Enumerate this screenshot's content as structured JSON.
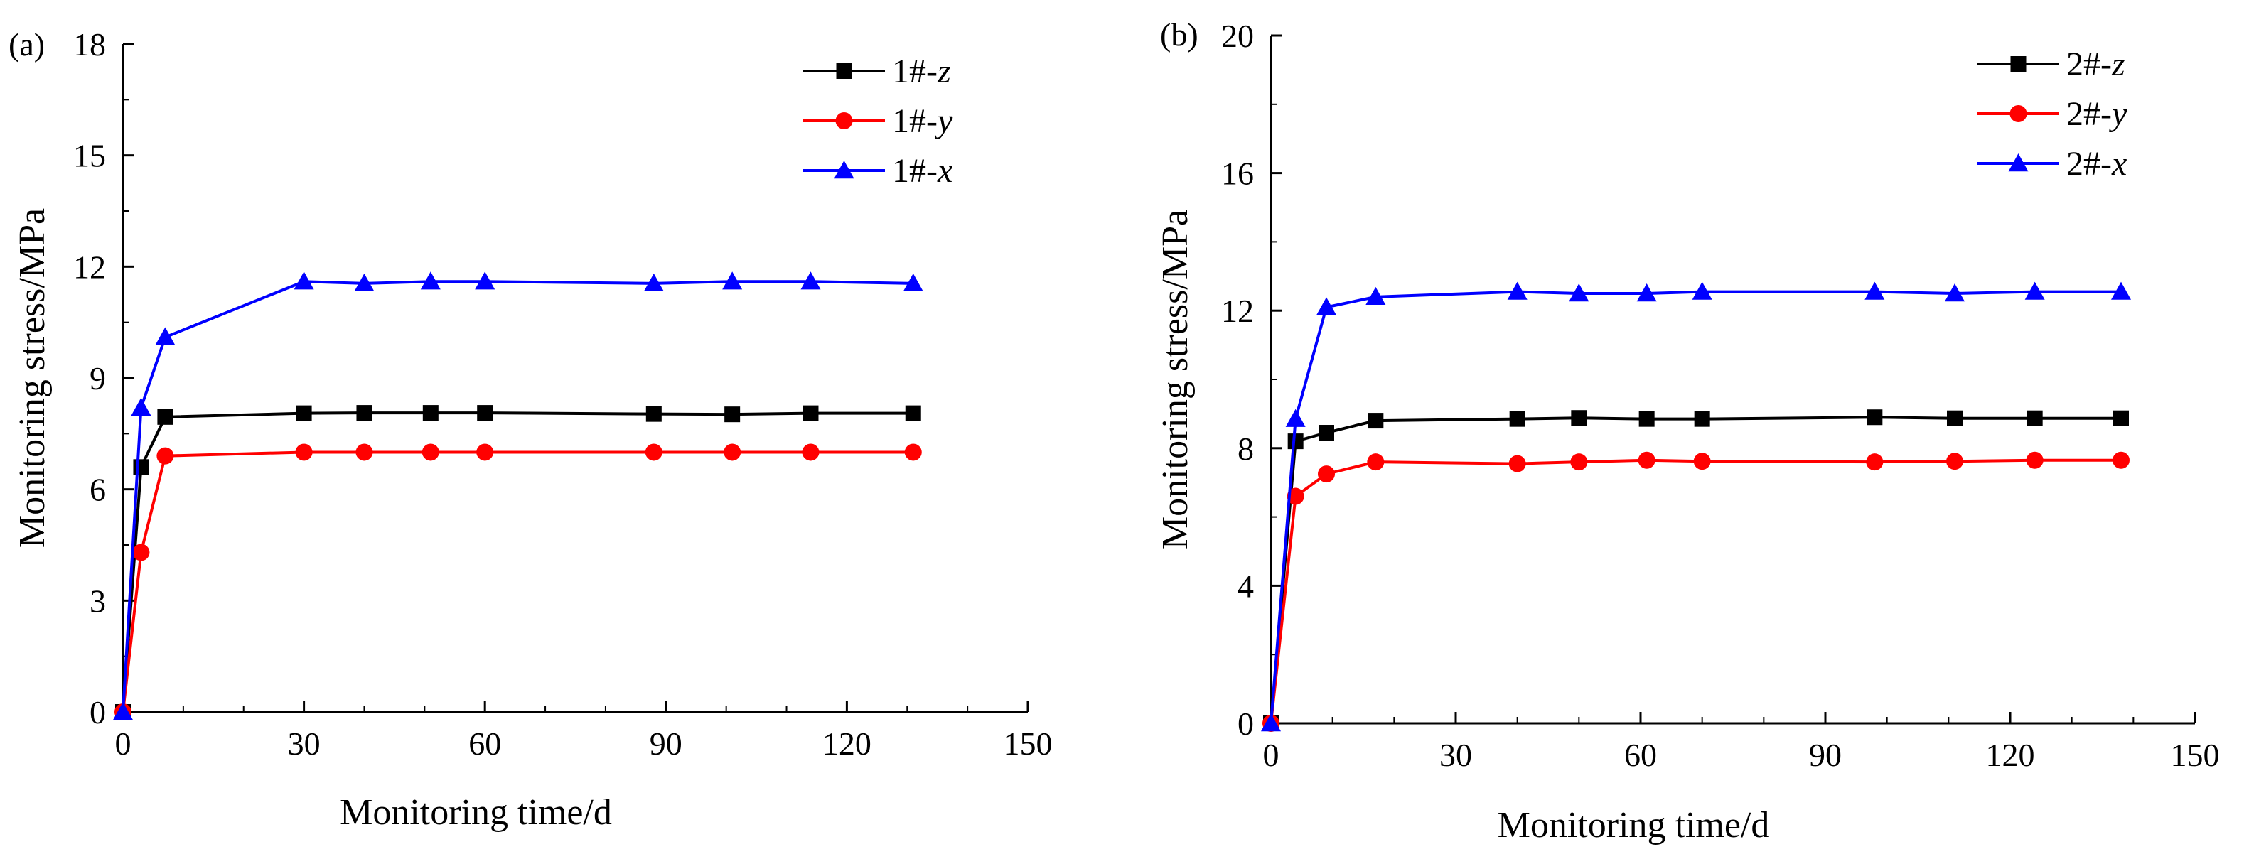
{
  "chart_data": [
    {
      "type": "line",
      "panel_label": "(a)",
      "xlabel": "Monitoring time/d",
      "ylabel": "Monitoring stress/MPa",
      "xlim": [
        0,
        150
      ],
      "ylim": [
        0,
        18
      ],
      "xticks": [
        0,
        30,
        60,
        90,
        120,
        150
      ],
      "yticks": [
        0,
        3,
        6,
        9,
        12,
        15,
        18
      ],
      "grid": false,
      "legend_position": "top-right",
      "series": [
        {
          "name": "1#-z",
          "prefix": "1#-",
          "axis": "z",
          "color": "#000000",
          "marker": "square",
          "x": [
            0,
            3,
            7,
            30,
            40,
            51,
            60,
            88,
            101,
            114,
            131
          ],
          "y": [
            0,
            6.6,
            7.95,
            8.05,
            8.06,
            8.06,
            8.06,
            8.03,
            8.02,
            8.05,
            8.05
          ]
        },
        {
          "name": "1#-y",
          "prefix": "1#-",
          "axis": "y",
          "color": "#ff0000",
          "marker": "circle",
          "x": [
            0,
            3,
            7,
            30,
            40,
            51,
            60,
            88,
            101,
            114,
            131
          ],
          "y": [
            0,
            4.3,
            6.9,
            7.0,
            7.0,
            7.0,
            7.0,
            7.0,
            7.0,
            7.0,
            7.0
          ]
        },
        {
          "name": "1#-x",
          "prefix": "1#-",
          "axis": "x",
          "color": "#0000ff",
          "marker": "triangle",
          "x": [
            0,
            3,
            7,
            30,
            40,
            51,
            60,
            88,
            101,
            114,
            131
          ],
          "y": [
            0,
            8.2,
            10.1,
            11.6,
            11.55,
            11.6,
            11.6,
            11.55,
            11.6,
            11.6,
            11.55
          ]
        }
      ]
    },
    {
      "type": "line",
      "panel_label": "(b)",
      "xlabel": "Monitoring time/d",
      "ylabel": "Monitoring stress/MPa",
      "xlim": [
        0,
        150
      ],
      "ylim": [
        0,
        20
      ],
      "xticks": [
        0,
        30,
        60,
        90,
        120,
        150
      ],
      "yticks": [
        0,
        4,
        8,
        12,
        16,
        20
      ],
      "grid": false,
      "legend_position": "top-right",
      "series": [
        {
          "name": "2#-z",
          "prefix": "2#-",
          "axis": "z",
          "color": "#000000",
          "marker": "square",
          "x": [
            0,
            4,
            9,
            17,
            40,
            50,
            61,
            70,
            98,
            111,
            124,
            138
          ],
          "y": [
            0,
            8.2,
            8.45,
            8.8,
            8.85,
            8.88,
            8.85,
            8.85,
            8.9,
            8.87,
            8.87,
            8.87
          ]
        },
        {
          "name": "2#-y",
          "prefix": "2#-",
          "axis": "y",
          "color": "#ff0000",
          "marker": "circle",
          "x": [
            0,
            4,
            9,
            17,
            40,
            50,
            61,
            70,
            98,
            111,
            124,
            138
          ],
          "y": [
            0,
            6.6,
            7.25,
            7.6,
            7.55,
            7.6,
            7.65,
            7.62,
            7.6,
            7.62,
            7.65,
            7.65
          ]
        },
        {
          "name": "2#-x",
          "prefix": "2#-",
          "axis": "x",
          "color": "#0000ff",
          "marker": "triangle",
          "x": [
            0,
            4,
            9,
            17,
            40,
            50,
            61,
            70,
            98,
            111,
            124,
            138
          ],
          "y": [
            0,
            8.85,
            12.1,
            12.4,
            12.55,
            12.5,
            12.5,
            12.55,
            12.55,
            12.5,
            12.55,
            12.55
          ]
        }
      ]
    }
  ]
}
